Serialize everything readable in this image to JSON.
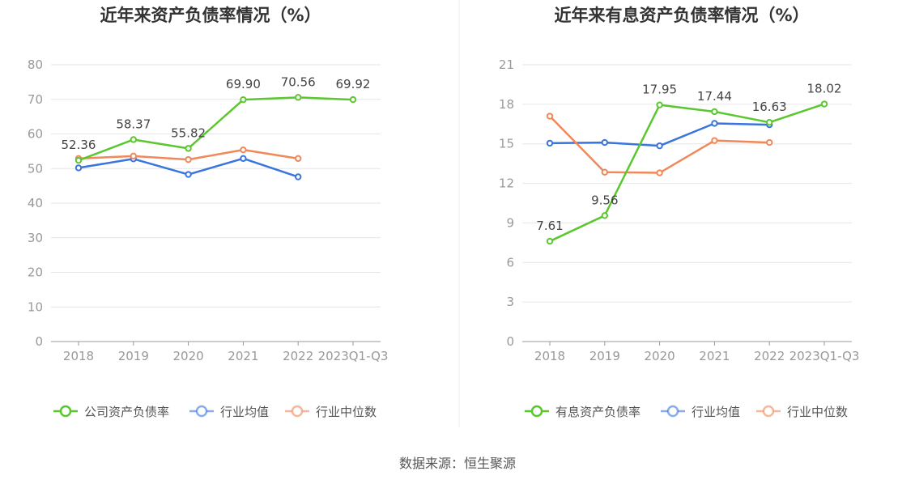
{
  "source_text": "数据来源：恒生聚源",
  "chart_data": [
    {
      "type": "line",
      "title": "近年来资产负债率情况（%）",
      "categories": [
        "2018",
        "2019",
        "2020",
        "2021",
        "2022",
        "2023Q1-Q3"
      ],
      "ylim": [
        0,
        80
      ],
      "yticks": [
        0,
        10,
        20,
        30,
        40,
        50,
        60,
        70,
        80
      ],
      "grid": true,
      "legend_position": "bottom",
      "series": [
        {
          "name": "公司资产负债率",
          "color": "#5bc72f",
          "values": [
            52.36,
            58.37,
            55.82,
            69.9,
            70.56,
            69.92
          ],
          "labels": [
            "52.36",
            "58.37",
            "55.82",
            "69.90",
            "70.56",
            "69.92"
          ]
        },
        {
          "name": "行业均值",
          "color": "#3a75de",
          "values": [
            50.2,
            52.8,
            48.3,
            52.9,
            47.6,
            null
          ]
        },
        {
          "name": "行业中位数",
          "color": "#f0885a",
          "values": [
            52.9,
            53.6,
            52.6,
            55.4,
            52.9,
            null
          ]
        }
      ]
    },
    {
      "type": "line",
      "title": "近年来有息资产负债率情况（%）",
      "categories": [
        "2018",
        "2019",
        "2020",
        "2021",
        "2022",
        "2023Q1-Q3"
      ],
      "ylim": [
        0,
        21
      ],
      "yticks": [
        0,
        3,
        6,
        9,
        12,
        15,
        18,
        21
      ],
      "grid": true,
      "legend_position": "bottom",
      "series": [
        {
          "name": "有息资产负债率",
          "color": "#5bc72f",
          "values": [
            7.61,
            9.56,
            17.95,
            17.44,
            16.63,
            18.02
          ],
          "labels": [
            "7.61",
            "9.56",
            "17.95",
            "17.44",
            "16.63",
            "18.02"
          ]
        },
        {
          "name": "行业均值",
          "color": "#3a75de",
          "values": [
            15.05,
            15.1,
            14.85,
            16.55,
            16.45,
            null
          ]
        },
        {
          "name": "行业中位数",
          "color": "#f0885a",
          "values": [
            17.1,
            12.85,
            12.8,
            15.25,
            15.1,
            null
          ]
        }
      ]
    }
  ]
}
